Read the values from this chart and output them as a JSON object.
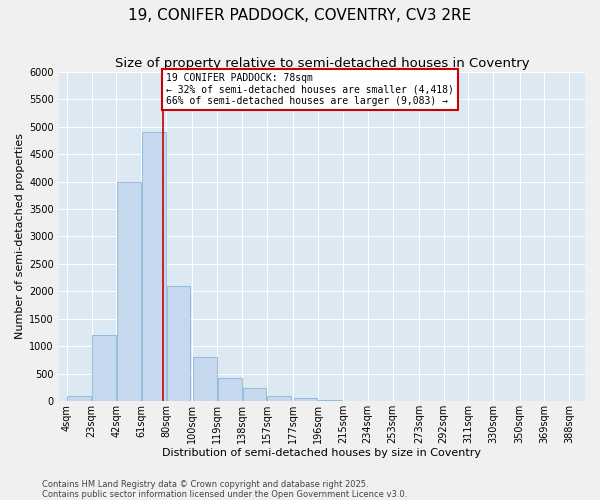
{
  "title1": "19, CONIFER PADDOCK, COVENTRY, CV3 2RE",
  "title2": "Size of property relative to semi-detached houses in Coventry",
  "xlabel": "Distribution of semi-detached houses by size in Coventry",
  "ylabel": "Number of semi-detached properties",
  "property_size": 78,
  "property_label": "19 CONIFER PADDOCK: 78sqm",
  "smaller_pct": 32,
  "smaller_n": 4418,
  "larger_pct": 66,
  "larger_n": 9083,
  "bar_color": "#c5d8ed",
  "bar_edge_color": "#7aaed0",
  "vline_color": "#cc0000",
  "background_color": "#dce8f2",
  "grid_color": "#ffffff",
  "categories": [
    "4sqm",
    "23sqm",
    "42sqm",
    "61sqm",
    "80sqm",
    "100sqm",
    "119sqm",
    "138sqm",
    "157sqm",
    "177sqm",
    "196sqm",
    "215sqm",
    "234sqm",
    "253sqm",
    "273sqm",
    "292sqm",
    "311sqm",
    "330sqm",
    "350sqm",
    "369sqm",
    "388sqm"
  ],
  "bin_left": [
    4,
    23,
    42,
    61,
    80,
    100,
    119,
    138,
    157,
    177,
    196,
    215,
    234,
    253,
    273,
    292,
    311,
    330,
    350,
    369,
    388
  ],
  "bin_width": 19,
  "counts": [
    100,
    1200,
    4000,
    4900,
    2100,
    800,
    420,
    240,
    100,
    55,
    20,
    8,
    3,
    1,
    0,
    0,
    0,
    0,
    0,
    0,
    0
  ],
  "ylim": [
    0,
    6000
  ],
  "yticks": [
    0,
    500,
    1000,
    1500,
    2000,
    2500,
    3000,
    3500,
    4000,
    4500,
    5000,
    5500,
    6000
  ],
  "footnote1": "Contains HM Land Registry data © Crown copyright and database right 2025.",
  "footnote2": "Contains public sector information licensed under the Open Government Licence v3.0.",
  "title_fontsize": 11,
  "subtitle_fontsize": 9.5,
  "axis_label_fontsize": 8,
  "tick_fontsize": 7,
  "annot_fontsize": 7,
  "footnote_fontsize": 6,
  "fig_bg": "#f0f0f0"
}
